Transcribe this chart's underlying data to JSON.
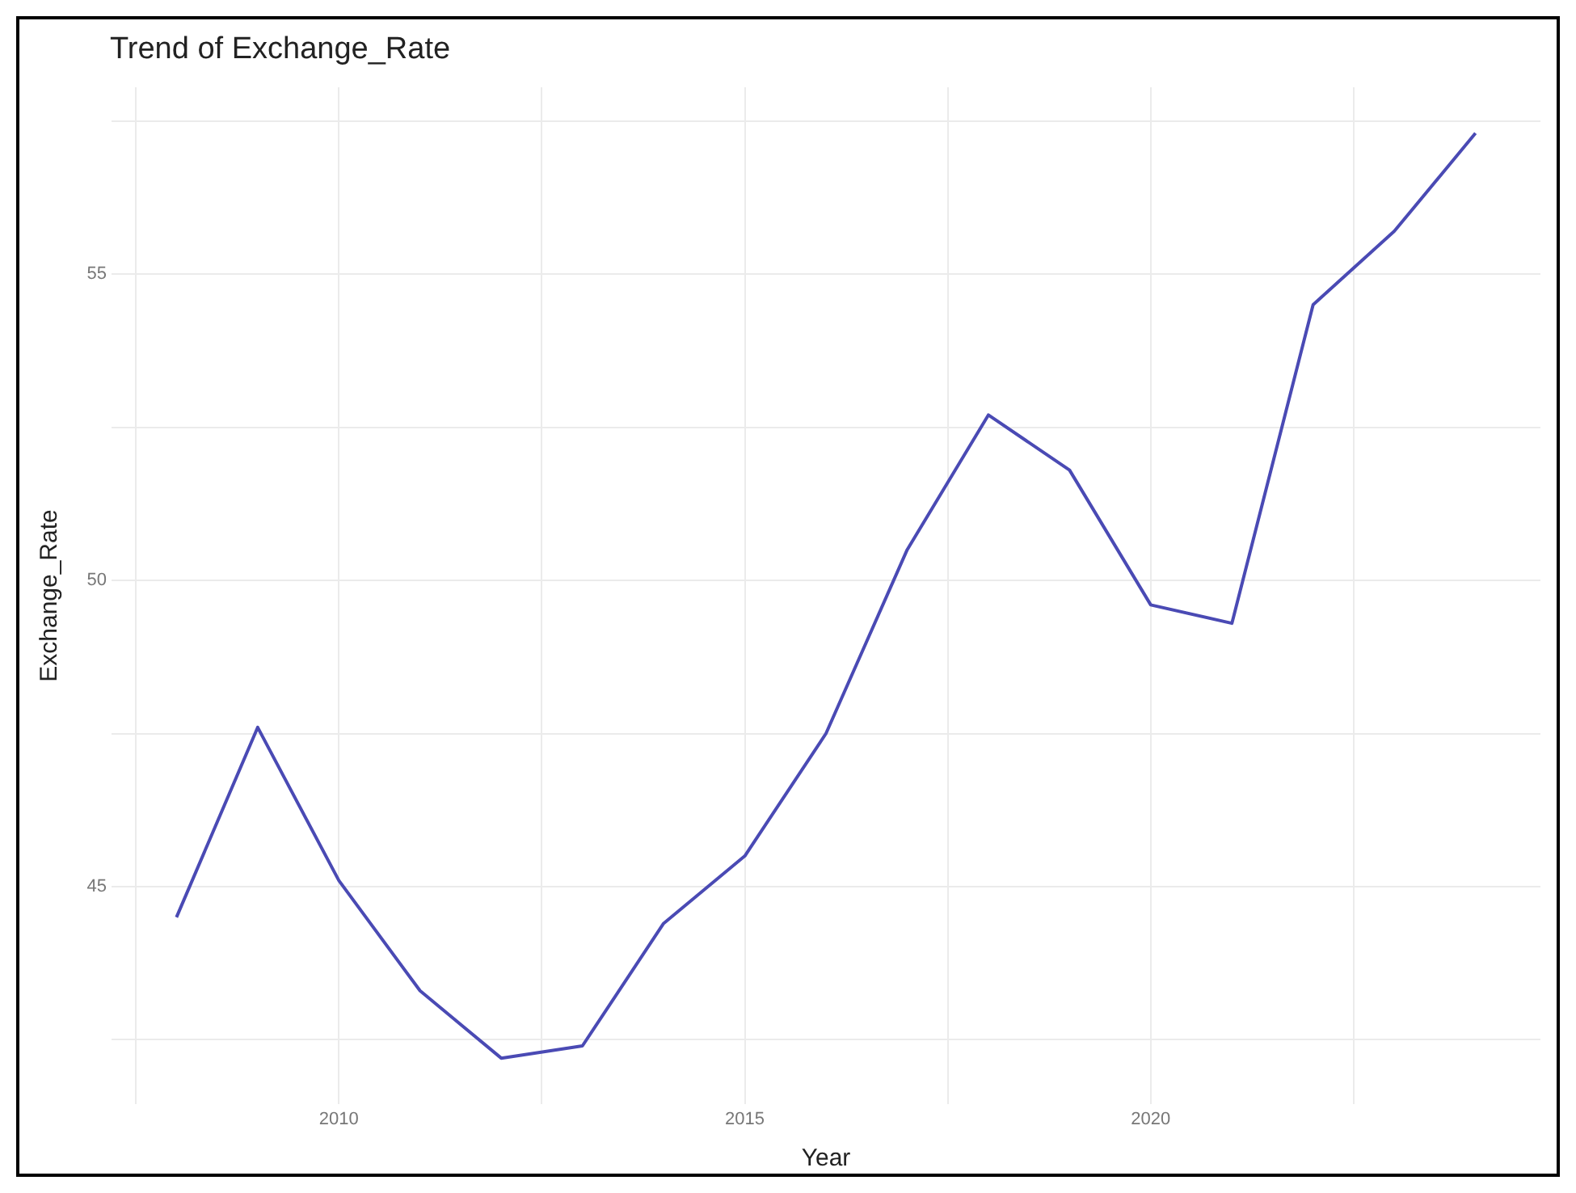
{
  "chart_data": {
    "type": "line",
    "title": "Trend of Exchange_Rate",
    "xlabel": "Year",
    "ylabel": "Exchange_Rate",
    "x": [
      2008,
      2009,
      2010,
      2011,
      2012,
      2013,
      2014,
      2015,
      2016,
      2017,
      2018,
      2019,
      2020,
      2021,
      2022,
      2023,
      2024
    ],
    "series": [
      {
        "color": "#4a4ab4",
        "values": [
          44.5,
          47.6,
          45.1,
          43.3,
          42.2,
          42.4,
          44.4,
          45.5,
          47.5,
          50.5,
          52.7,
          51.8,
          49.6,
          49.3,
          54.5,
          55.7,
          57.3
        ]
      }
    ],
    "xlim": [
      2007.2,
      2024.8
    ],
    "xticks": [
      {
        "value": 2007.5,
        "label": null
      },
      2010,
      {
        "value": 2012.5,
        "label": null
      },
      2015,
      {
        "value": 2017.5,
        "label": null
      },
      2020,
      {
        "value": 2022.5,
        "label": null
      }
    ],
    "ylim": [
      41.45,
      58.05
    ],
    "yticks": [
      {
        "value": 42.5,
        "label": null
      },
      45,
      {
        "value": 47.5,
        "label": null
      },
      50,
      {
        "value": 52.5,
        "label": null
      },
      55,
      {
        "value": 57.5,
        "label": null
      }
    ],
    "grid": true,
    "legend": false,
    "marker": "none",
    "line_style": "solid"
  }
}
